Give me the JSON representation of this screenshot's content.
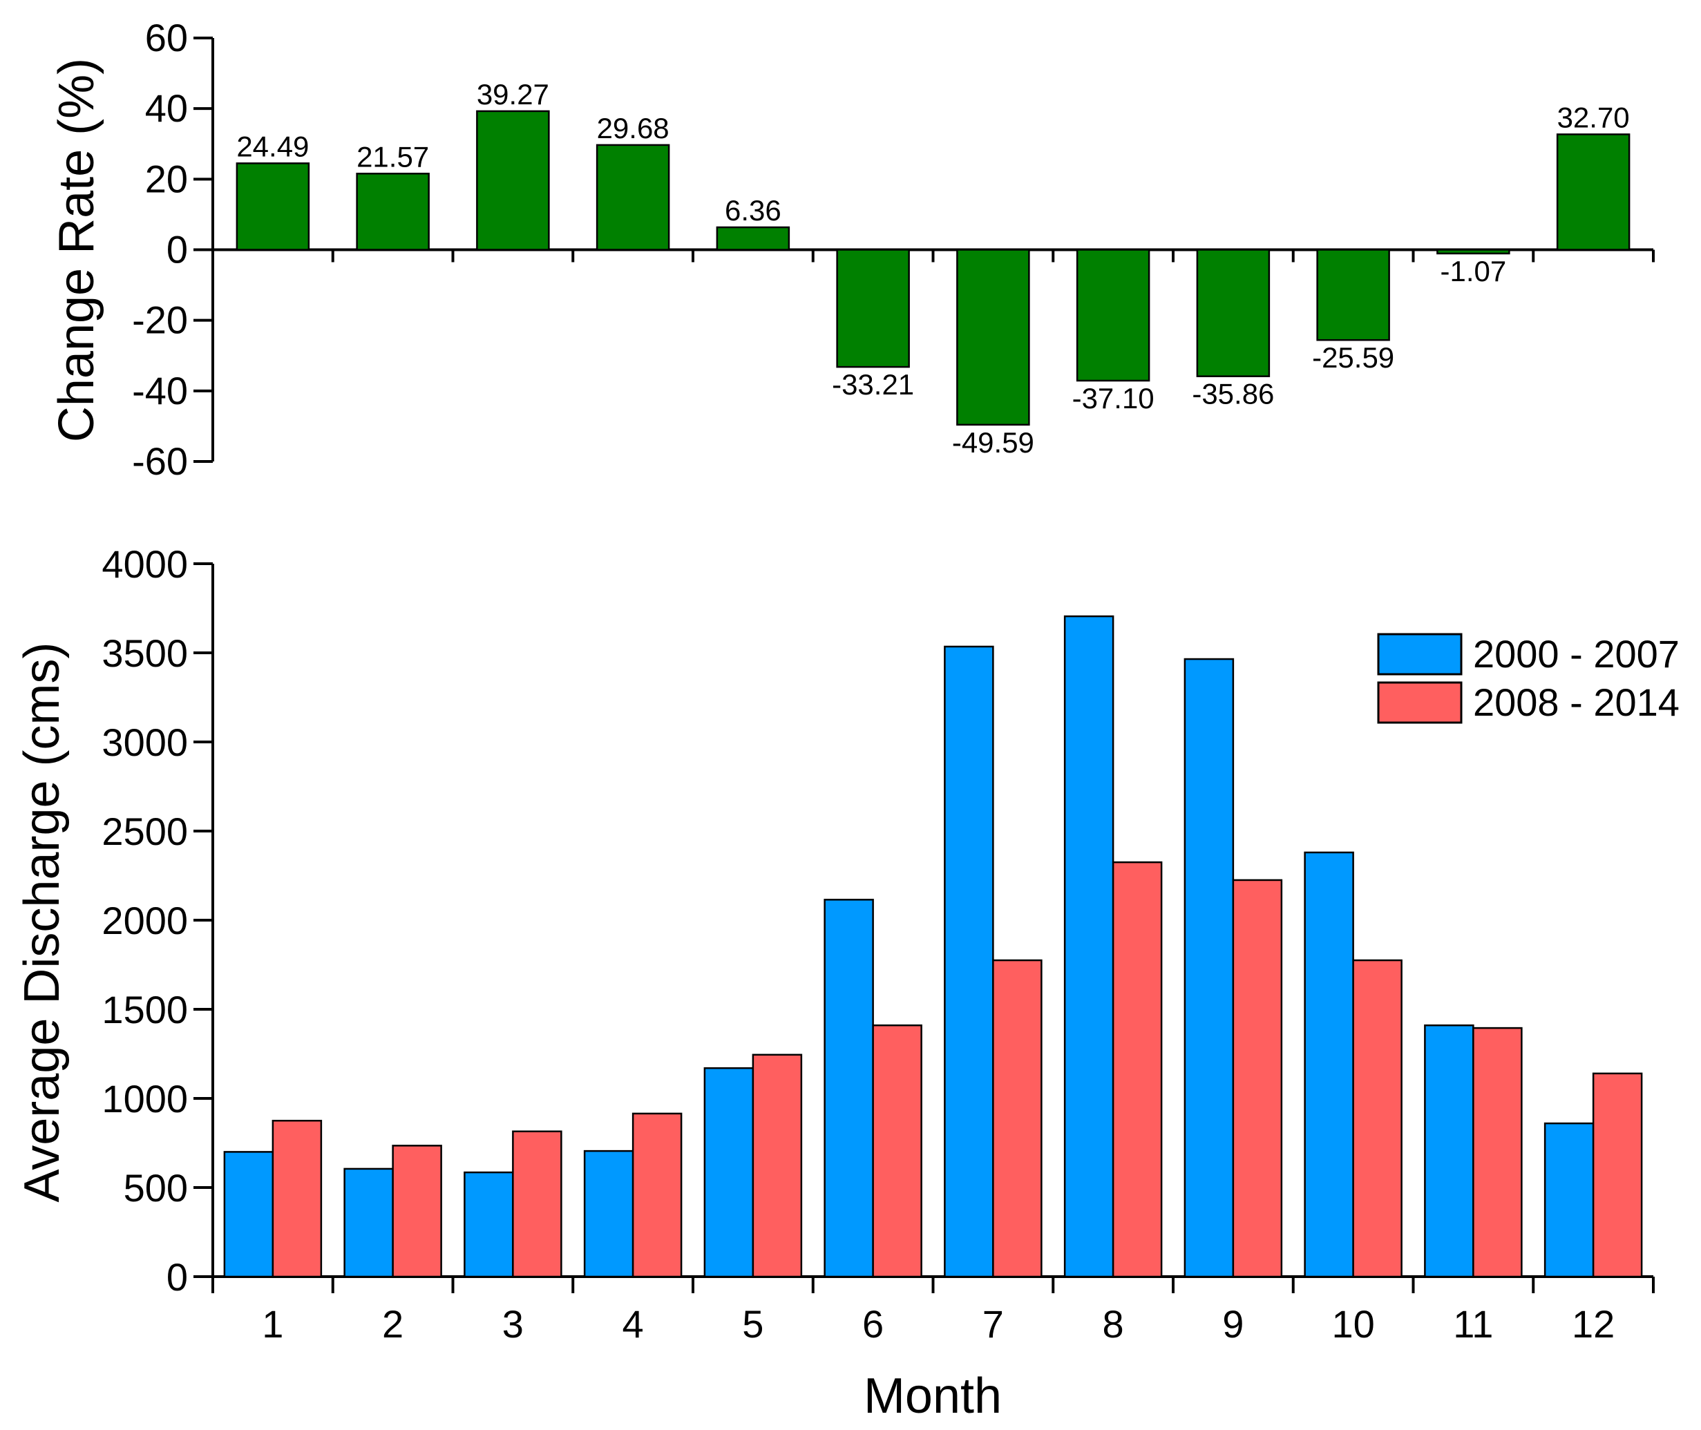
{
  "chart_data": [
    {
      "id": "change-rate",
      "type": "bar",
      "title": "",
      "xlabel": "",
      "ylabel": "Change Rate (%)",
      "ylim": [
        -60,
        60
      ],
      "yticks": [
        "60",
        "40",
        "20",
        "0",
        "-20",
        "-40",
        "-60"
      ],
      "categories": [
        "1",
        "2",
        "3",
        "4",
        "5",
        "6",
        "7",
        "8",
        "9",
        "10",
        "11",
        "12"
      ],
      "values": [
        24.49,
        21.57,
        39.27,
        29.68,
        6.36,
        -33.21,
        -49.59,
        -37.1,
        -35.86,
        -25.59,
        -1.07,
        32.7
      ],
      "data_labels": [
        "24.49",
        "21.57",
        "39.27",
        "29.68",
        "6.36",
        "-33.21",
        "-49.59",
        "-37.10",
        "-35.86",
        "-25.59",
        "-1.07",
        "32.70"
      ],
      "color": "#008000",
      "grid": false
    },
    {
      "id": "average-discharge",
      "type": "bar",
      "title": "",
      "xlabel": "Month",
      "ylabel": "Average Discharge (cms)",
      "ylim": [
        0,
        4000
      ],
      "yticks": [
        "4000",
        "3500",
        "3000",
        "2500",
        "2000",
        "1500",
        "1000",
        "500",
        "0"
      ],
      "categories": [
        "1",
        "2",
        "3",
        "4",
        "5",
        "6",
        "7",
        "8",
        "9",
        "10",
        "11",
        "12"
      ],
      "series": [
        {
          "name": "2000 - 2007",
          "color": "#0099ff",
          "values": [
            700,
            605,
            585,
            705,
            1170,
            2115,
            3535,
            3705,
            3465,
            2380,
            1410,
            860
          ]
        },
        {
          "name": "2008 - 2014",
          "color": "#ff5f5f",
          "values": [
            875,
            735,
            815,
            915,
            1245,
            1410,
            1775,
            2325,
            2225,
            1775,
            1395,
            1140
          ]
        }
      ],
      "legend_position": "top-right",
      "grid": false
    }
  ]
}
